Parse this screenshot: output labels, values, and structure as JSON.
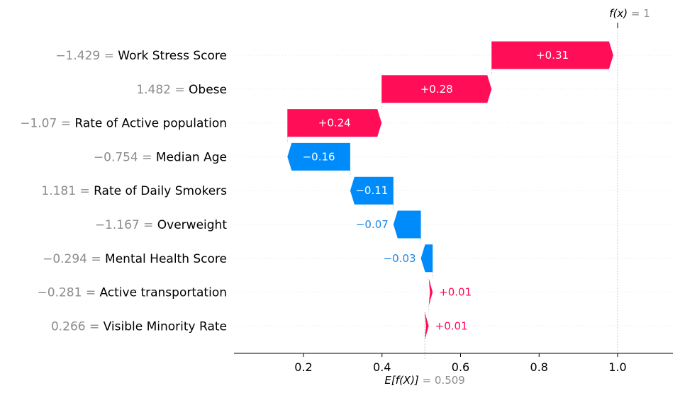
{
  "chart_data": {
    "type": "waterfall",
    "base_value": 0.509,
    "output_value": 1,
    "base_label_prefix": "E[f(X)]",
    "base_label_value": "= 0.509",
    "output_label_prefix": "f(x)",
    "output_label_value": "= 1",
    "xlim": [
      0.03,
      1.14
    ],
    "xticks": [
      {
        "value": 0.2,
        "label": "0.2"
      },
      {
        "value": 0.4,
        "label": "0.4"
      },
      {
        "value": 0.6,
        "label": "0.6"
      },
      {
        "value": 0.8,
        "label": "0.8"
      },
      {
        "value": 1.0,
        "label": "1.0"
      }
    ],
    "features": [
      {
        "value_text": "−1.429 =",
        "name": "Work Stress Score",
        "shap": 0.31,
        "label": "+0.31"
      },
      {
        "value_text": "1.482 =",
        "name": "Obese",
        "shap": 0.28,
        "label": "+0.28"
      },
      {
        "value_text": "−1.07 =",
        "name": "Rate of Active population",
        "shap": 0.24,
        "label": "+0.24"
      },
      {
        "value_text": "−0.754 =",
        "name": "Median Age",
        "shap": -0.16,
        "label": "−0.16"
      },
      {
        "value_text": "1.181 =",
        "name": "Rate of Daily Smokers",
        "shap": -0.11,
        "label": "−0.11"
      },
      {
        "value_text": "−1.167 =",
        "name": "Overweight",
        "shap": -0.07,
        "label": "−0.07"
      },
      {
        "value_text": "−0.294 =",
        "name": "Mental Health Score",
        "shap": -0.03,
        "label": "−0.03"
      },
      {
        "value_text": "−0.281 =",
        "name": "Active transportation",
        "shap": 0.01,
        "label": "+0.01"
      },
      {
        "value_text": "0.266 =",
        "name": "Visible Minority Rate",
        "shap": 0.01,
        "label": "+0.01"
      }
    ],
    "colors": {
      "positive": "#ff0d57",
      "negative": "#008bfb",
      "negative_text": "#1e88e5"
    }
  }
}
